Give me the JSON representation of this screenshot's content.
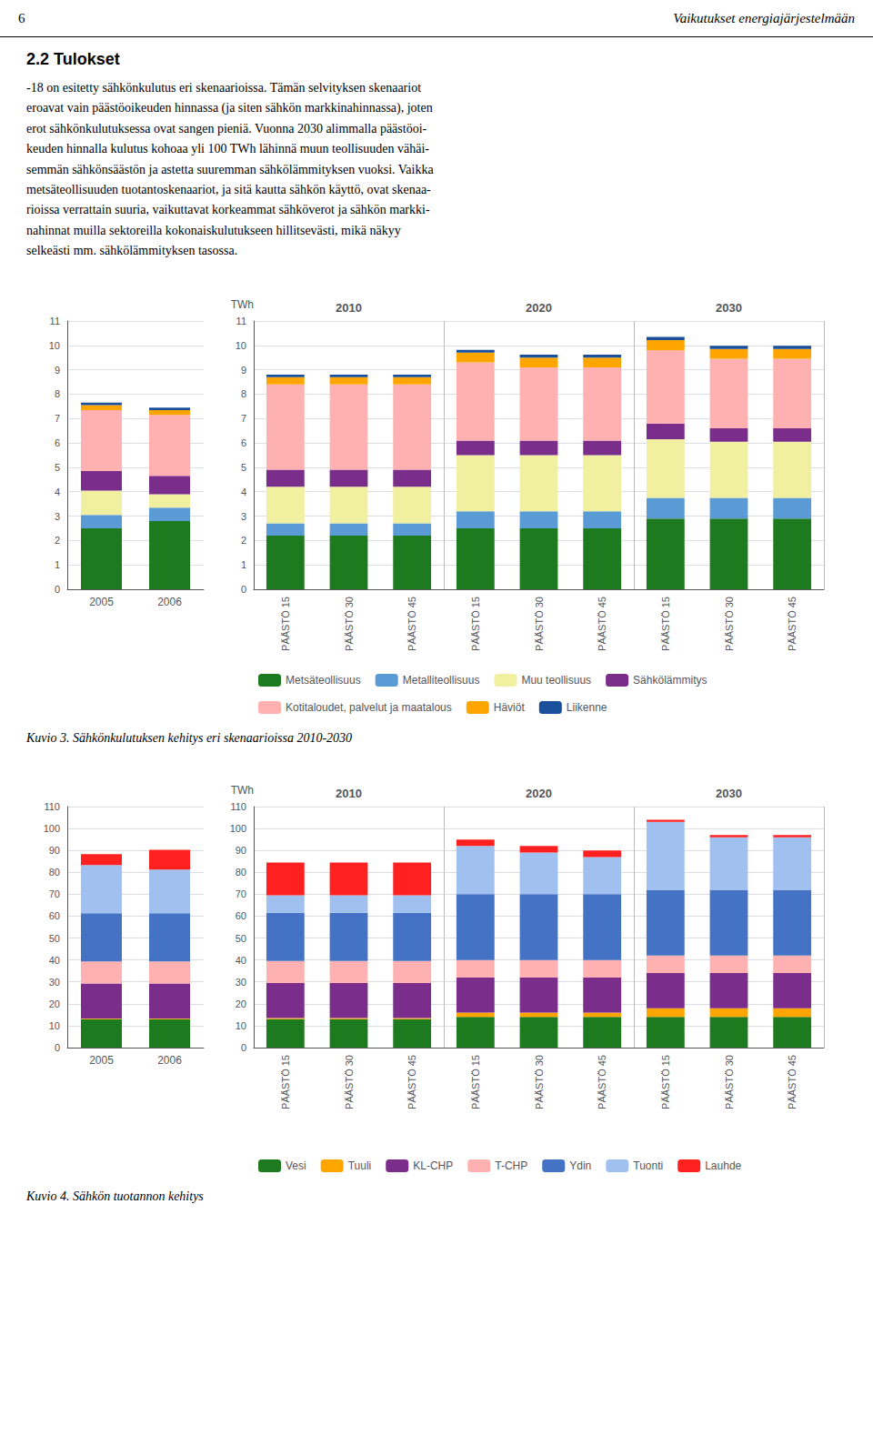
{
  "page": {
    "header_left": "6",
    "header_right": "Vaikutukset energiajärjestelmään",
    "section_title": "2.2 Tulokset",
    "body_text": "-18 on esitetty sähkönkulutus eri skenaarioissa. Tämän selvityksen skenaariot\neroavat vain päästöoikeuden hinnassa (ja siten sähkön markkinahinnassa), joten\nerot sähkönkulutuksessa ovat sangen pieniä. Vuonna 2030 alimmalla päästöoi-\nkeuden hinnalla kulutus kohoaa yli 100 TWh lähinnä muun teollisuuden vähäi-\nsemmän sähkönsäästön ja astetta suuremman sähkölämmityksen vuoksi. Vaikka\nmetsäteollisuuden tuotantoskenaariot, ja sitä kautta sähkön käyttö, ovat skenaa-\nrioissa verrattain suuria, vaikuttavat korkeammat sähköverot ja sähkön markki-\nnahinnat muilla sektoreilla kokonaiskulutukseen hillitsevästi, mikä näkyy\nselkeästi mm. sähkölämmityksen tasossa."
  },
  "chart_data": [
    {
      "type": "bar",
      "stacked": true,
      "title": "Kuvio 3. Sähkönkulutuksen kehitys eri skenaarioissa 2010-2030",
      "ylabel": "TWh",
      "ylim": [
        0,
        11
      ],
      "yticks": [
        0,
        1,
        2,
        3,
        4,
        5,
        6,
        7,
        8,
        9,
        10,
        11
      ],
      "grid": true,
      "legend": "bottom",
      "panels": [
        {
          "categories": [
            "2005",
            "2006"
          ],
          "series": [
            {
              "name": "Metsäteollisuus",
              "color": "#1E7A1E",
              "values": [
                2.5,
                2.8
              ]
            },
            {
              "name": "Metalliteollisuus",
              "color": "#5B9BD5",
              "values": [
                0.55,
                0.55
              ]
            },
            {
              "name": "Muu teollisuus",
              "color": "#F0F0A0",
              "values": [
                1.0,
                0.55
              ]
            },
            {
              "name": "Sähkölämmitys",
              "color": "#7B2D8B",
              "values": [
                0.8,
                0.75
              ]
            },
            {
              "name": "Kotitaloudet, palvelut ja maatalous",
              "color": "#FFB0B0",
              "values": [
                2.5,
                2.5
              ]
            },
            {
              "name": "Häviöt",
              "color": "#FFA500",
              "values": [
                0.2,
                0.2
              ]
            },
            {
              "name": "Liikenne",
              "color": "#1A4F9C",
              "values": [
                0.1,
                0.1
              ]
            }
          ]
        },
        {
          "groups": [
            "2010",
            "2020",
            "2030"
          ],
          "categories": [
            "PÄÄSTÖ 15",
            "PÄÄSTÖ 30",
            "PÄÄSTÖ 45",
            "PÄÄSTÖ 15",
            "PÄÄSTÖ 30",
            "PÄÄSTÖ 45",
            "PÄÄSTÖ 15",
            "PÄÄSTÖ 30",
            "PÄÄSTÖ 45"
          ],
          "series": [
            {
              "name": "Metsäteollisuus",
              "color": "#1E7A1E",
              "values": [
                2.2,
                2.2,
                2.2,
                2.5,
                2.5,
                2.5,
                2.9,
                2.9,
                2.9
              ]
            },
            {
              "name": "Metalliteollisuus",
              "color": "#5B9BD5",
              "values": [
                0.5,
                0.5,
                0.5,
                0.7,
                0.7,
                0.7,
                0.85,
                0.85,
                0.85
              ]
            },
            {
              "name": "Muu teollisuus",
              "color": "#F0F0A0",
              "values": [
                1.5,
                1.5,
                1.5,
                2.3,
                2.3,
                2.3,
                2.4,
                2.3,
                2.3
              ]
            },
            {
              "name": "Sähkölämmitys",
              "color": "#7B2D8B",
              "values": [
                0.7,
                0.7,
                0.7,
                0.6,
                0.6,
                0.6,
                0.65,
                0.55,
                0.55
              ]
            },
            {
              "name": "Kotitaloudet, palvelut ja maatalous",
              "color": "#FFB0B0",
              "values": [
                3.5,
                3.5,
                3.5,
                3.2,
                3.0,
                3.0,
                3.0,
                2.85,
                2.85
              ]
            },
            {
              "name": "Häviöt",
              "color": "#FFA500",
              "values": [
                0.3,
                0.3,
                0.3,
                0.4,
                0.4,
                0.4,
                0.42,
                0.4,
                0.4
              ]
            },
            {
              "name": "Liikenne",
              "color": "#1A4F9C",
              "values": [
                0.1,
                0.1,
                0.1,
                0.12,
                0.12,
                0.12,
                0.13,
                0.13,
                0.13
              ]
            }
          ]
        }
      ]
    },
    {
      "type": "bar",
      "stacked": true,
      "title": "Kuvio 4. Sähkön tuotannon kehitys",
      "ylabel": "TWh",
      "ylim": [
        0,
        110
      ],
      "yticks": [
        0,
        10,
        20,
        30,
        40,
        50,
        60,
        70,
        80,
        90,
        100,
        110
      ],
      "grid": true,
      "legend": "bottom",
      "panels": [
        {
          "categories": [
            "2005",
            "2006"
          ],
          "series": [
            {
              "name": "Vesi",
              "color": "#1E7A1E",
              "values": [
                13,
                13
              ]
            },
            {
              "name": "Tuuli",
              "color": "#FFA500",
              "values": [
                0.3,
                0.3
              ]
            },
            {
              "name": "KL-CHP",
              "color": "#7B2D8B",
              "values": [
                16,
                16
              ]
            },
            {
              "name": "T-CHP",
              "color": "#FFB0B0",
              "values": [
                10,
                10
              ]
            },
            {
              "name": "Ydin",
              "color": "#4472C4",
              "values": [
                22,
                22
              ]
            },
            {
              "name": "Tuonti",
              "color": "#A0C0F0",
              "values": [
                22,
                20
              ]
            },
            {
              "name": "Lauhde",
              "color": "#FF2020",
              "values": [
                5,
                9
              ]
            }
          ]
        },
        {
          "groups": [
            "2010",
            "2020",
            "2030"
          ],
          "categories": [
            "PÄÄSTÖ 15",
            "PÄÄSTÖ 30",
            "PÄÄSTÖ 45",
            "PÄÄSTÖ 15",
            "PÄÄSTÖ 30",
            "PÄÄSTÖ 45",
            "PÄÄSTÖ 15",
            "PÄÄSTÖ 30",
            "PÄÄSTÖ 45"
          ],
          "series": [
            {
              "name": "Vesi",
              "color": "#1E7A1E",
              "values": [
                13,
                13,
                13,
                14,
                14,
                14,
                14,
                14,
                14
              ]
            },
            {
              "name": "Tuuli",
              "color": "#FFA500",
              "values": [
                0.5,
                0.5,
                0.5,
                2,
                2,
                2,
                4,
                4,
                4
              ]
            },
            {
              "name": "KL-CHP",
              "color": "#7B2D8B",
              "values": [
                16,
                16,
                16,
                16,
                16,
                16,
                16,
                16,
                16
              ]
            },
            {
              "name": "T-CHP",
              "color": "#FFB0B0",
              "values": [
                10,
                10,
                10,
                8,
                8,
                8,
                8,
                8,
                8
              ]
            },
            {
              "name": "Ydin",
              "color": "#4472C4",
              "values": [
                22,
                22,
                22,
                30,
                30,
                30,
                30,
                30,
                30
              ]
            },
            {
              "name": "Tuonti",
              "color": "#A0C0F0",
              "values": [
                8,
                8,
                8,
                22,
                19,
                17,
                31,
                24,
                24
              ]
            },
            {
              "name": "Lauhde",
              "color": "#FF2020",
              "values": [
                15,
                15,
                15,
                3,
                3,
                3,
                1,
                1,
                1
              ]
            }
          ]
        }
      ]
    }
  ]
}
